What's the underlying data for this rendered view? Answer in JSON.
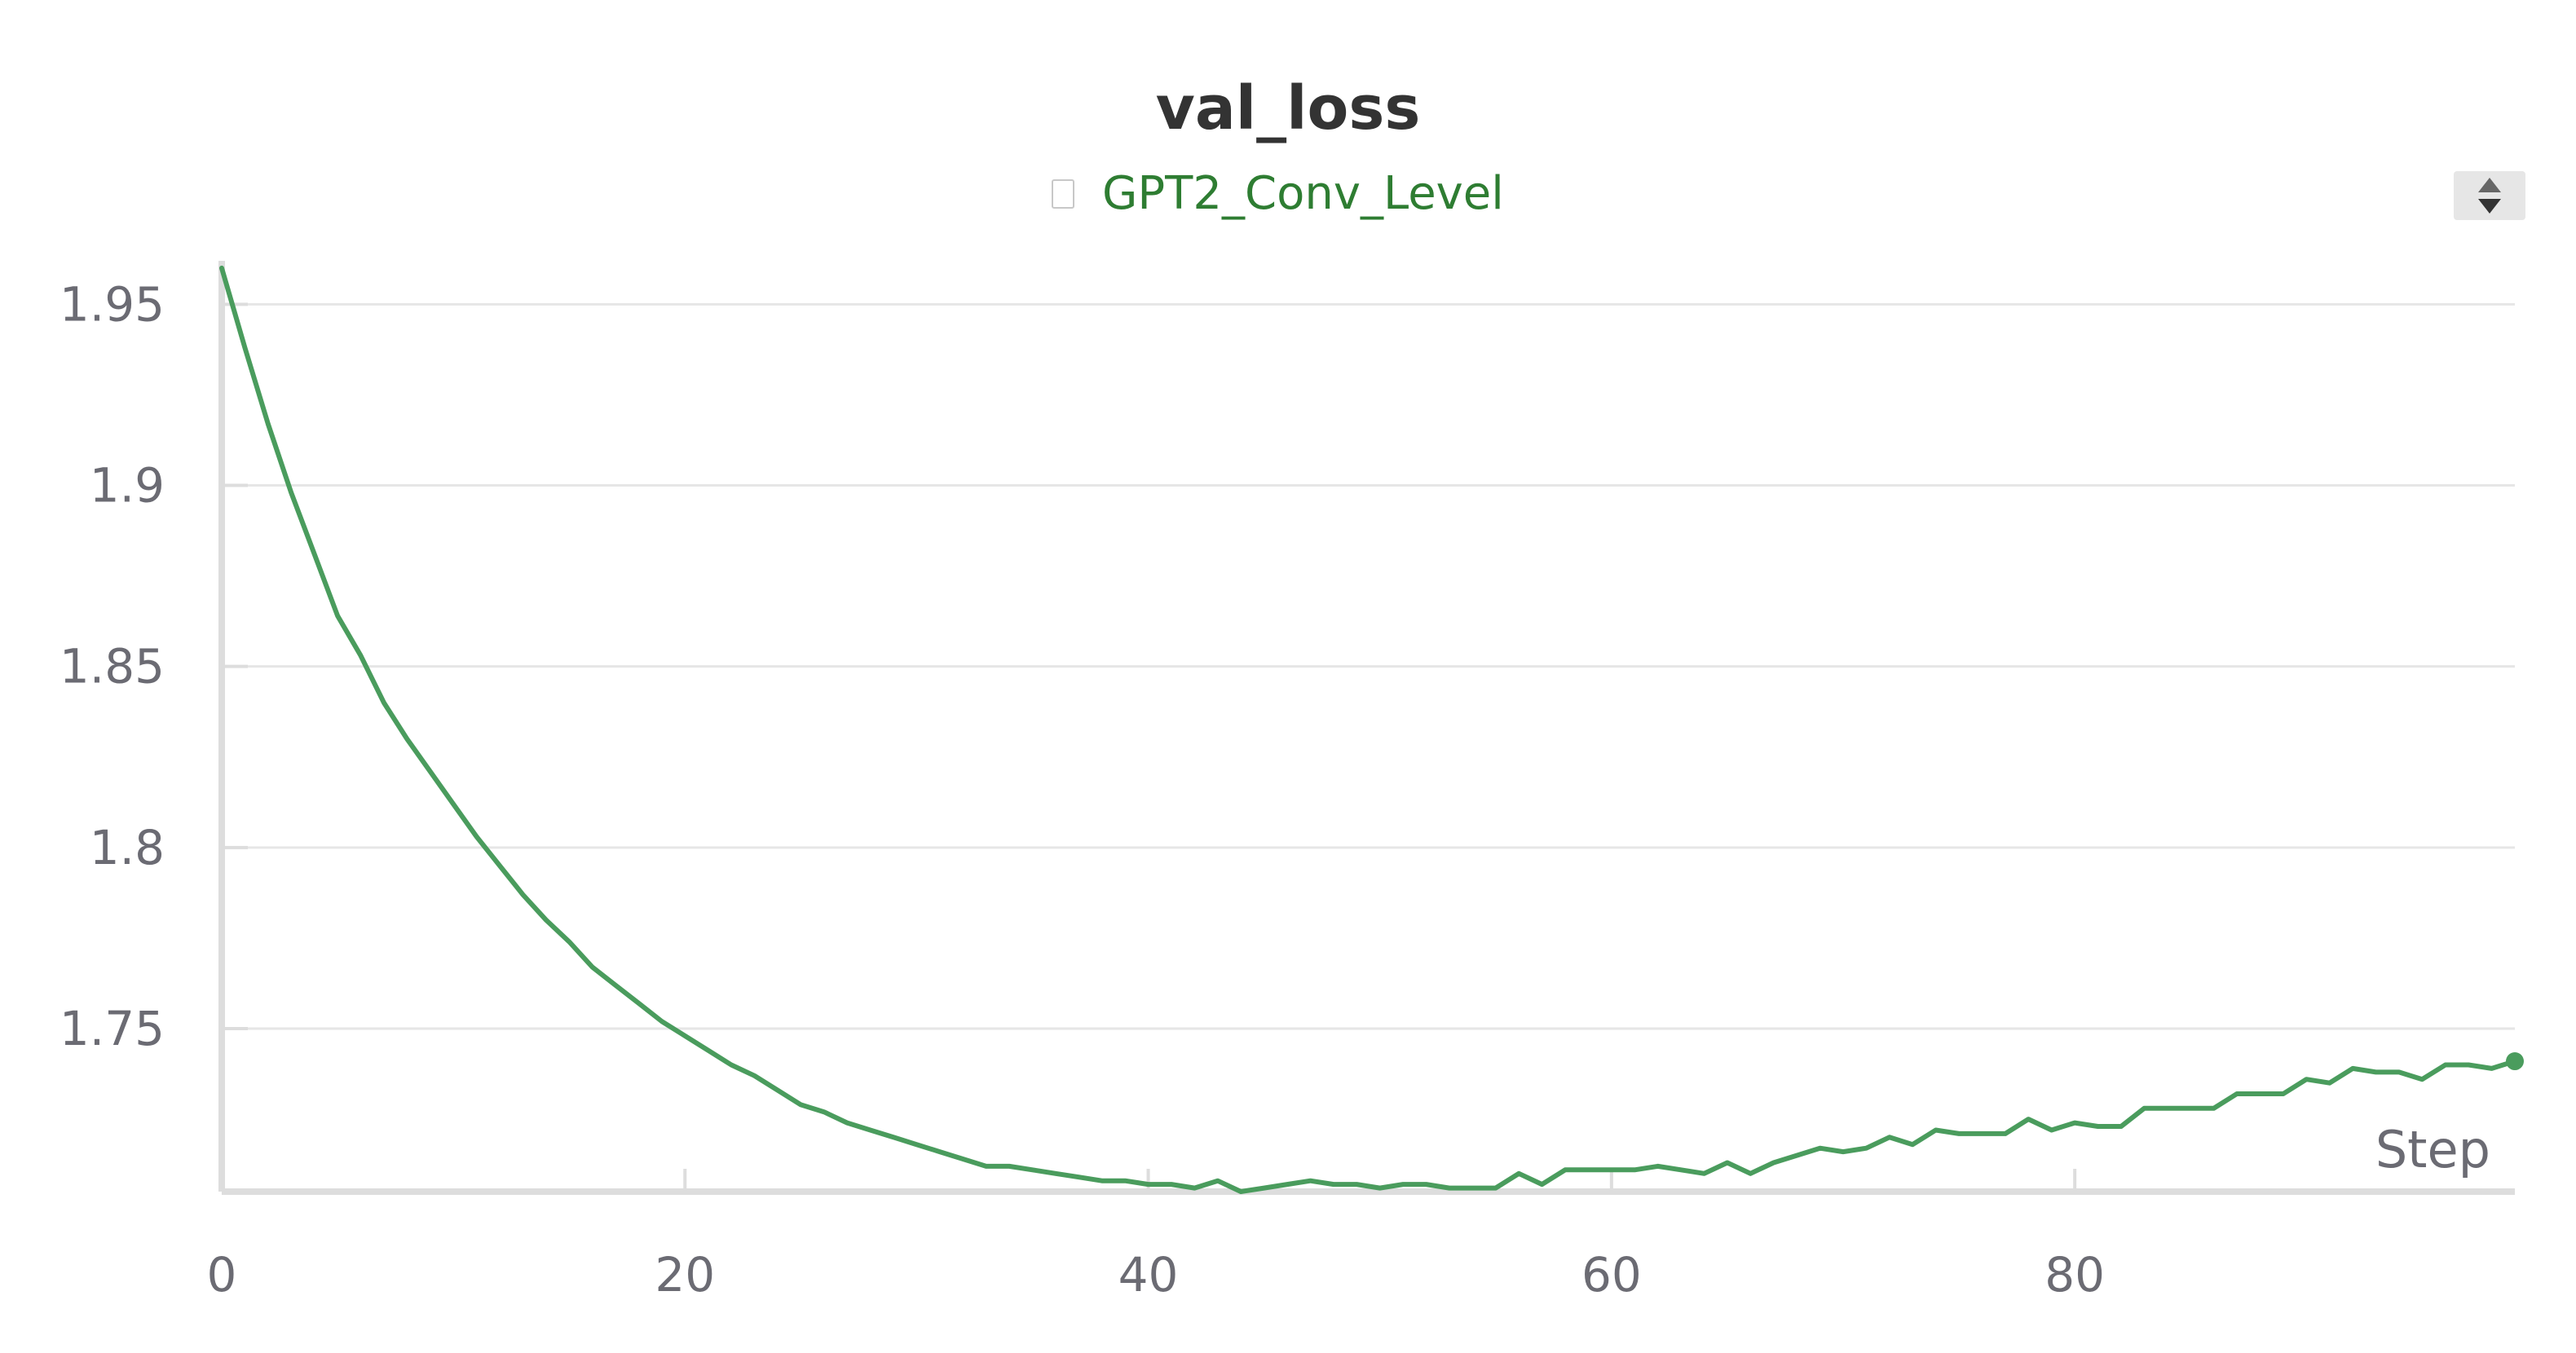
{
  "colors": {
    "series": "#4a9c5d",
    "legend_text": "#2e7d32",
    "grid": "#e6e6e6",
    "axis": "#dddddd",
    "tick_text": "#6b6b73"
  },
  "scroll_icon": "sort-arrows-icon",
  "chart_data": {
    "type": "line",
    "title": "val_loss",
    "xlabel": "Step",
    "ylabel": "",
    "xlim": [
      0,
      99
    ],
    "ylim": [
      1.705,
      1.962
    ],
    "x_ticks": [
      0,
      20,
      40,
      60,
      80
    ],
    "x_tick_labels": [
      "0",
      "20",
      "40",
      "60",
      "80"
    ],
    "y_ticks": [
      1.75,
      1.8,
      1.85,
      1.9,
      1.95
    ],
    "y_tick_labels": [
      "1.75",
      "1.8",
      "1.85",
      "1.9",
      "1.95"
    ],
    "grid": true,
    "legend_position": "top-center",
    "series": [
      {
        "name": "GPT2_Conv_Level",
        "x": [
          0,
          1,
          2,
          3,
          4,
          5,
          6,
          7,
          8,
          9,
          10,
          11,
          12,
          13,
          14,
          15,
          16,
          17,
          18,
          19,
          20,
          21,
          22,
          23,
          24,
          25,
          26,
          27,
          28,
          29,
          30,
          31,
          32,
          33,
          34,
          35,
          36,
          37,
          38,
          39,
          40,
          41,
          42,
          43,
          44,
          45,
          46,
          47,
          48,
          49,
          50,
          51,
          52,
          53,
          54,
          55,
          56,
          57,
          58,
          59,
          60,
          61,
          62,
          63,
          64,
          65,
          66,
          67,
          68,
          69,
          70,
          71,
          72,
          73,
          74,
          75,
          76,
          77,
          78,
          79,
          80,
          81,
          82,
          83,
          84,
          85,
          86,
          87,
          88,
          89,
          90,
          91,
          92,
          93,
          94,
          95,
          96,
          97,
          98,
          99
        ],
        "y": [
          1.96,
          1.938,
          1.917,
          1.898,
          1.881,
          1.864,
          1.853,
          1.84,
          1.83,
          1.821,
          1.812,
          1.803,
          1.795,
          1.787,
          1.78,
          1.774,
          1.767,
          1.762,
          1.757,
          1.752,
          1.748,
          1.744,
          1.74,
          1.737,
          1.733,
          1.729,
          1.727,
          1.724,
          1.722,
          1.72,
          1.718,
          1.716,
          1.714,
          1.712,
          1.712,
          1.711,
          1.71,
          1.709,
          1.708,
          1.708,
          1.707,
          1.707,
          1.706,
          1.708,
          1.705,
          1.706,
          1.707,
          1.708,
          1.707,
          1.707,
          1.706,
          1.707,
          1.707,
          1.706,
          1.706,
          1.706,
          1.71,
          1.707,
          1.711,
          1.711,
          1.711,
          1.711,
          1.712,
          1.711,
          1.71,
          1.713,
          1.71,
          1.713,
          1.715,
          1.717,
          1.716,
          1.717,
          1.72,
          1.718,
          1.722,
          1.721,
          1.721,
          1.721,
          1.725,
          1.722,
          1.724,
          1.723,
          1.723,
          1.728,
          1.728,
          1.728,
          1.728,
          1.732,
          1.732,
          1.732,
          1.736,
          1.735,
          1.739,
          1.738,
          1.738,
          1.736,
          1.74,
          1.74,
          1.739,
          1.741
        ]
      }
    ]
  }
}
